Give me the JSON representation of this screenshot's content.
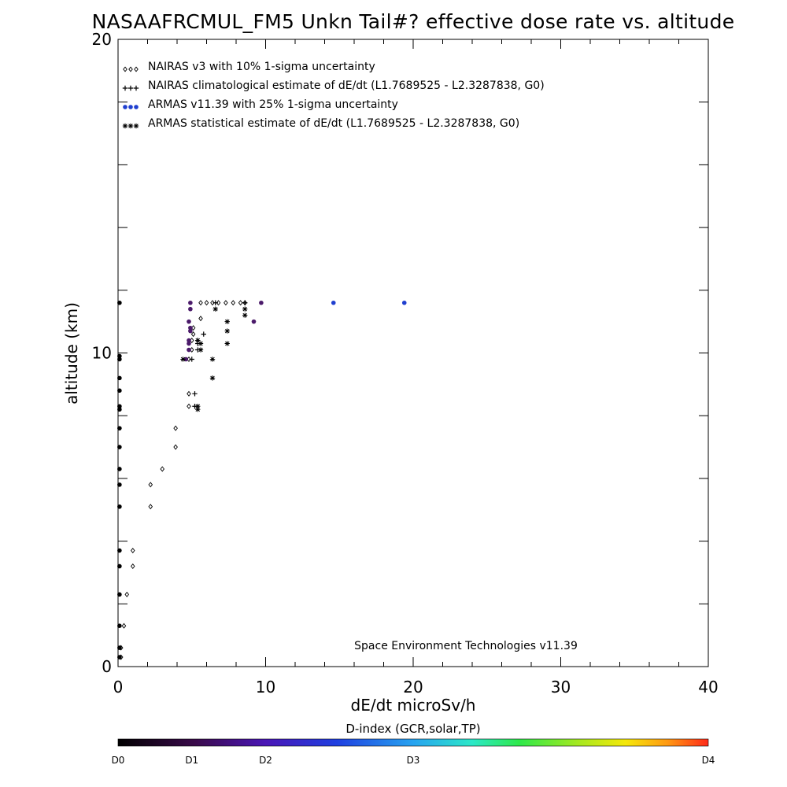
{
  "chart_data": {
    "type": "scatter",
    "title": "NASAAFRCMUL_FM5 Unkn Tail#? effective dose rate vs. altitude",
    "xlabel": "dE/dt microSv/h",
    "ylabel": "altitude (km)",
    "xlim": [
      0,
      40
    ],
    "ylim": [
      0,
      20
    ],
    "x_tick_labels": [
      "0",
      "10",
      "20",
      "30",
      "40"
    ],
    "y_tick_labels": [
      "0",
      "10",
      "20"
    ],
    "x_tick_values": [
      0,
      10,
      20,
      30,
      40
    ],
    "y_tick_values": [
      0,
      10,
      20
    ],
    "credit": "Space Environment Technologies v11.39",
    "legend_position": "top-left",
    "colorbar": {
      "label": "D-index (GCR,solar,TP)",
      "tick_labels": [
        "D0",
        "D1",
        "D2",
        "D3",
        "D4"
      ],
      "tick_values": [
        0,
        0.25,
        0.5,
        1,
        2
      ]
    },
    "series": [
      {
        "name": "NAIRAS v3 with 10% 1-sigma uncertainty",
        "marker": "diamond",
        "color": "#000000",
        "points": [
          [
            0.2,
            0.3
          ],
          [
            0.2,
            0.6
          ],
          [
            0.4,
            1.3
          ],
          [
            0.6,
            2.3
          ],
          [
            1.0,
            3.2
          ],
          [
            1.0,
            3.7
          ],
          [
            2.2,
            5.1
          ],
          [
            2.2,
            5.8
          ],
          [
            3.0,
            6.3
          ],
          [
            3.9,
            7.0
          ],
          [
            3.9,
            7.6
          ],
          [
            4.8,
            8.3
          ],
          [
            4.8,
            8.7
          ],
          [
            4.8,
            9.8
          ],
          [
            5.0,
            10.1
          ],
          [
            5.0,
            10.4
          ],
          [
            5.1,
            10.6
          ],
          [
            5.1,
            10.8
          ],
          [
            5.6,
            11.1
          ],
          [
            5.6,
            11.6
          ],
          [
            6.0,
            11.6
          ],
          [
            6.4,
            11.6
          ],
          [
            6.8,
            11.6
          ],
          [
            7.3,
            11.6
          ],
          [
            7.8,
            11.6
          ],
          [
            8.3,
            11.6
          ],
          [
            8.6,
            11.6
          ]
        ]
      },
      {
        "name": "NAIRAS climatological estimate of dE/dt (L1.7689525 - L2.3287838, G0)",
        "marker": "plus",
        "color": "#000000",
        "points": [
          [
            5.2,
            8.3
          ],
          [
            5.2,
            8.7
          ],
          [
            5.0,
            9.8
          ],
          [
            5.4,
            10.1
          ],
          [
            5.4,
            10.3
          ],
          [
            5.4,
            10.4
          ],
          [
            5.8,
            10.6
          ],
          [
            6.6,
            11.6
          ],
          [
            8.6,
            11.6
          ]
        ]
      },
      {
        "name": "ARMAS v11.39 with 25% 1-sigma uncertainty",
        "marker": "dot",
        "color": "#1f3fcf",
        "points": [
          [
            0.1,
            0.3
          ],
          [
            0.1,
            0.6
          ],
          [
            0.1,
            1.3
          ],
          [
            0.1,
            2.3
          ],
          [
            0.1,
            3.2
          ],
          [
            0.1,
            3.7
          ],
          [
            0.1,
            5.1
          ],
          [
            0.1,
            5.8
          ],
          [
            0.1,
            6.3
          ],
          [
            0.1,
            7.0
          ],
          [
            0.1,
            7.6
          ],
          [
            0.1,
            8.2
          ],
          [
            0.1,
            8.3
          ],
          [
            0.1,
            8.8
          ],
          [
            0.1,
            9.2
          ],
          [
            0.1,
            9.8
          ],
          [
            0.1,
            9.9
          ],
          [
            0.1,
            11.6
          ],
          [
            4.6,
            9.8
          ],
          [
            4.8,
            10.1
          ],
          [
            4.8,
            10.3
          ],
          [
            4.8,
            10.4
          ],
          [
            4.9,
            10.7
          ],
          [
            4.9,
            10.8
          ],
          [
            4.8,
            11.0
          ],
          [
            4.9,
            11.4
          ],
          [
            4.9,
            11.6
          ],
          [
            9.2,
            11.0
          ],
          [
            9.7,
            11.6
          ],
          [
            14.6,
            11.6
          ],
          [
            19.4,
            11.6
          ]
        ]
      },
      {
        "name": "ARMAS statistical estimate of dE/dt (L1.7689525 - L2.3287838, G0)",
        "marker": "asterisk",
        "color": "#000000",
        "points": [
          [
            5.4,
            8.2
          ],
          [
            5.4,
            8.3
          ],
          [
            4.4,
            9.8
          ],
          [
            6.4,
            9.8
          ],
          [
            6.4,
            9.2
          ],
          [
            5.6,
            10.1
          ],
          [
            5.6,
            10.3
          ],
          [
            5.4,
            10.4
          ],
          [
            7.4,
            10.3
          ],
          [
            7.4,
            10.7
          ],
          [
            7.4,
            11.0
          ],
          [
            8.6,
            11.2
          ],
          [
            8.6,
            11.4
          ],
          [
            6.6,
            11.4
          ]
        ]
      }
    ]
  }
}
